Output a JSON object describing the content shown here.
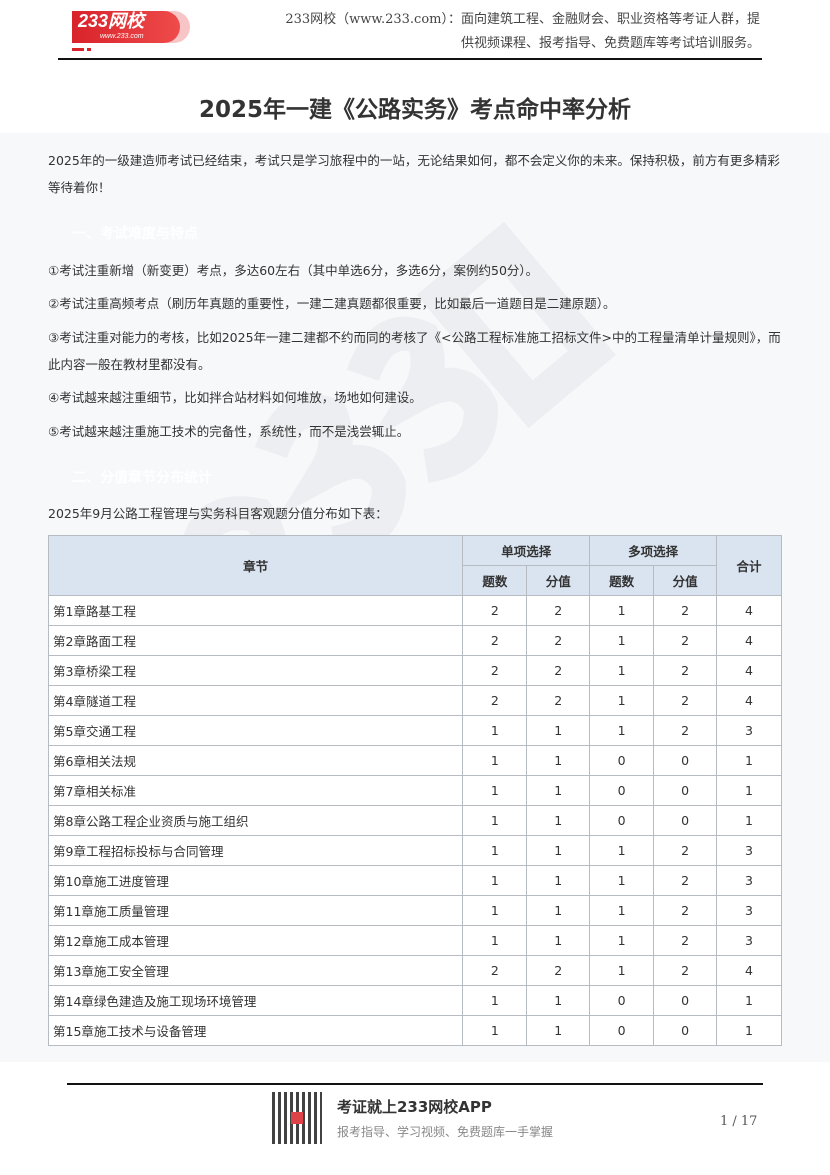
{
  "header": {
    "logo_text": "233网校",
    "logo_url_text": "www.233.com",
    "intro": "233网校（www.233.com）：面向建筑工程、金融财会、职业资格等考证人群，提供视频课程、报考指导、免费题库等考试培训服务。"
  },
  "title": "2025年一建《公路实务》考点命中率分析",
  "intro": "2025年的一级建造师考试已经结束，考试只是学习旅程中的一站，无论结果如何，都不会定义你的未来。保持积极，前方有更多精彩等待着你！",
  "section1": {
    "heading": "一、考试难度与特点",
    "items": [
      "①考试注重新增（新变更）考点，多达60左右（其中单选6分，多选6分，案例约50分）。",
      "②考试注重高频考点（刷历年真题的重要性，一建二建真题都很重要，比如最后一道题目是二建原题）。",
      "③考试注重对能力的考核，比如2025年一建二建都不约而同的考核了《<公路工程标准施工招标文件>中的工程量清单计量规则》，而此内容一般在教材里都没有。",
      "④考试越来越注重细节，比如拌合站材料如何堆放，场地如何建设。",
      "⑤考试越来越注重施工技术的完备性，系统性，而不是浅尝辄止。"
    ]
  },
  "section2": {
    "heading": "二、分值章节分布统计",
    "caption": "2025年9月公路工程管理与实务科目客观题分值分布如下表："
  },
  "table": {
    "headers": {
      "chapter": "章节",
      "single": "单项选择",
      "multi": "多项选择",
      "total": "合计",
      "count": "题数",
      "score": "分值"
    },
    "rows": [
      [
        "第1章路基工程",
        "2",
        "2",
        "1",
        "2",
        "4"
      ],
      [
        "第2章路面工程",
        "2",
        "2",
        "1",
        "2",
        "4"
      ],
      [
        "第3章桥梁工程",
        "2",
        "2",
        "1",
        "2",
        "4"
      ],
      [
        "第4章隧道工程",
        "2",
        "2",
        "1",
        "2",
        "4"
      ],
      [
        "第5章交通工程",
        "1",
        "1",
        "1",
        "2",
        "3"
      ],
      [
        "第6章相关法规",
        "1",
        "1",
        "0",
        "0",
        "1"
      ],
      [
        "第7章相关标准",
        "1",
        "1",
        "0",
        "0",
        "1"
      ],
      [
        "第8章公路工程企业资质与施工组织",
        "1",
        "1",
        "0",
        "0",
        "1"
      ],
      [
        "第9章工程招标投标与合同管理",
        "1",
        "1",
        "1",
        "2",
        "3"
      ],
      [
        "第10章施工进度管理",
        "1",
        "1",
        "1",
        "2",
        "3"
      ],
      [
        "第11章施工质量管理",
        "1",
        "1",
        "1",
        "2",
        "3"
      ],
      [
        "第12章施工成本管理",
        "1",
        "1",
        "1",
        "2",
        "3"
      ],
      [
        "第13章施工安全管理",
        "2",
        "2",
        "1",
        "2",
        "4"
      ],
      [
        "第14章绿色建造及施工现场环境管理",
        "1",
        "1",
        "0",
        "0",
        "1"
      ],
      [
        "第15章施工技术与设备管理",
        "1",
        "1",
        "0",
        "0",
        "1"
      ]
    ]
  },
  "footer": {
    "app_title": "考证就上233网校APP",
    "app_subtitle": "报考指导、学习视频、免费题库一手掌握",
    "page": "1 / 17"
  }
}
